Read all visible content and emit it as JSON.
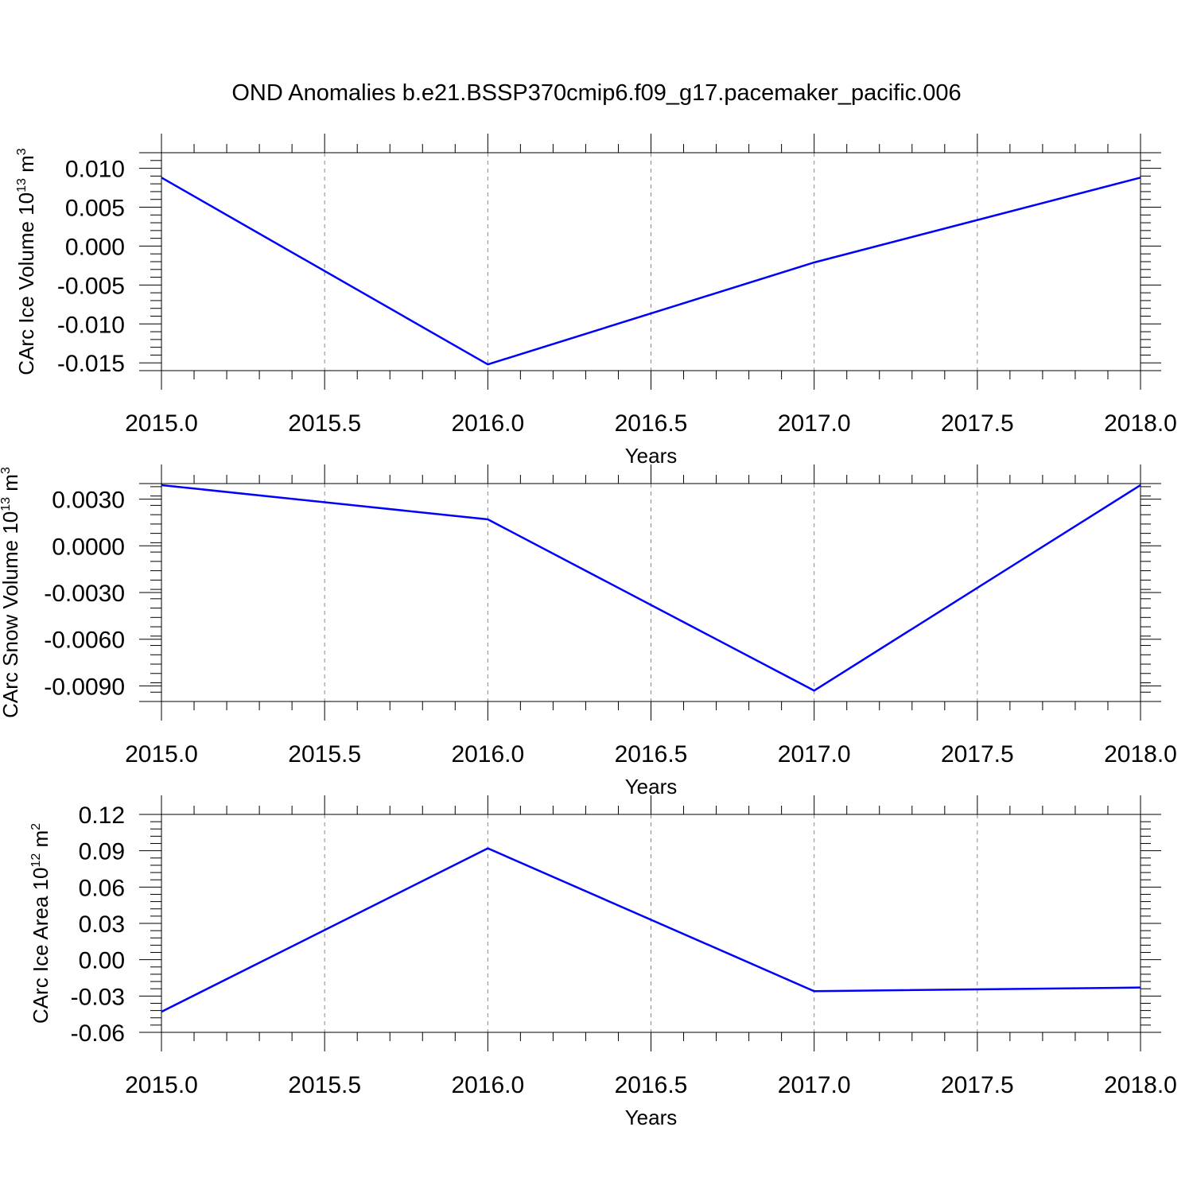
{
  "title": "OND Anomalies b.e21.BSSP370cmip6.f09_g17.pacemaker_pacific.006",
  "chart_data": [
    {
      "type": "line",
      "title": "",
      "xlabel": "Years",
      "ylabel": {
        "main": "CArc Ice Volume 10",
        "sup": "13",
        "unit": " m",
        "unit_sup": "3"
      },
      "x": [
        2015.0,
        2016.0,
        2017.0,
        2018.0
      ],
      "series": [
        {
          "values": [
            0.0088,
            -0.0152,
            -0.0021,
            0.0088
          ],
          "color": "#0000ff"
        }
      ],
      "xlim": [
        2015.0,
        2018.0
      ],
      "ylim": [
        -0.016,
        0.012
      ],
      "xticks": [
        2015.0,
        2015.5,
        2016.0,
        2016.5,
        2017.0,
        2017.5,
        2018.0
      ],
      "xtick_labels": [
        "2015.0",
        "2015.5",
        "2016.0",
        "2016.5",
        "2017.0",
        "2017.5",
        "2018.0"
      ],
      "yticks": [
        -0.015,
        -0.01,
        -0.005,
        0.0,
        0.005,
        0.01
      ],
      "ytick_labels": [
        "-0.015",
        "-0.010",
        "-0.005",
        "0.000",
        "0.005",
        "0.010"
      ],
      "yminor_step": 0.001,
      "grid": "vertical dashed"
    },
    {
      "type": "line",
      "title": "",
      "xlabel": "Years",
      "ylabel": {
        "main": "CArc Snow Volume 10",
        "sup": "13",
        "unit": " m",
        "unit_sup": "3"
      },
      "x": [
        2015.0,
        2016.0,
        2017.0,
        2018.0
      ],
      "series": [
        {
          "values": [
            0.0039,
            0.0017,
            -0.0093,
            0.0039
          ],
          "color": "#0000ff"
        }
      ],
      "xlim": [
        2015.0,
        2018.0
      ],
      "ylim": [
        -0.01,
        0.004
      ],
      "xticks": [
        2015.0,
        2015.5,
        2016.0,
        2016.5,
        2017.0,
        2017.5,
        2018.0
      ],
      "xtick_labels": [
        "2015.0",
        "2015.5",
        "2016.0",
        "2016.5",
        "2017.0",
        "2017.5",
        "2018.0"
      ],
      "yticks": [
        -0.009,
        -0.006,
        -0.003,
        0.0,
        0.003
      ],
      "ytick_labels": [
        "-0.0090",
        "-0.0060",
        "-0.0030",
        "0.0000",
        "0.0030"
      ],
      "yminor_step": 0.0006,
      "grid": "vertical dashed"
    },
    {
      "type": "line",
      "title": "",
      "xlabel": "Years",
      "ylabel": {
        "main": "CArc Ice Area 10",
        "sup": "12",
        "unit": " m",
        "unit_sup": "2"
      },
      "x": [
        2015.0,
        2016.0,
        2017.0,
        2018.0
      ],
      "series": [
        {
          "values": [
            -0.043,
            0.092,
            -0.026,
            -0.023
          ],
          "color": "#0000ff"
        }
      ],
      "xlim": [
        2015.0,
        2018.0
      ],
      "ylim": [
        -0.06,
        0.12
      ],
      "xticks": [
        2015.0,
        2015.5,
        2016.0,
        2016.5,
        2017.0,
        2017.5,
        2018.0
      ],
      "xtick_labels": [
        "2015.0",
        "2015.5",
        "2016.0",
        "2016.5",
        "2017.0",
        "2017.5",
        "2018.0"
      ],
      "yticks": [
        -0.06,
        -0.03,
        0.0,
        0.03,
        0.06,
        0.09,
        0.12
      ],
      "ytick_labels": [
        "-0.06",
        "-0.03",
        "0.00",
        "0.03",
        "0.06",
        "0.09",
        "0.12"
      ],
      "yminor_step": 0.006,
      "grid": "vertical dashed"
    }
  ]
}
